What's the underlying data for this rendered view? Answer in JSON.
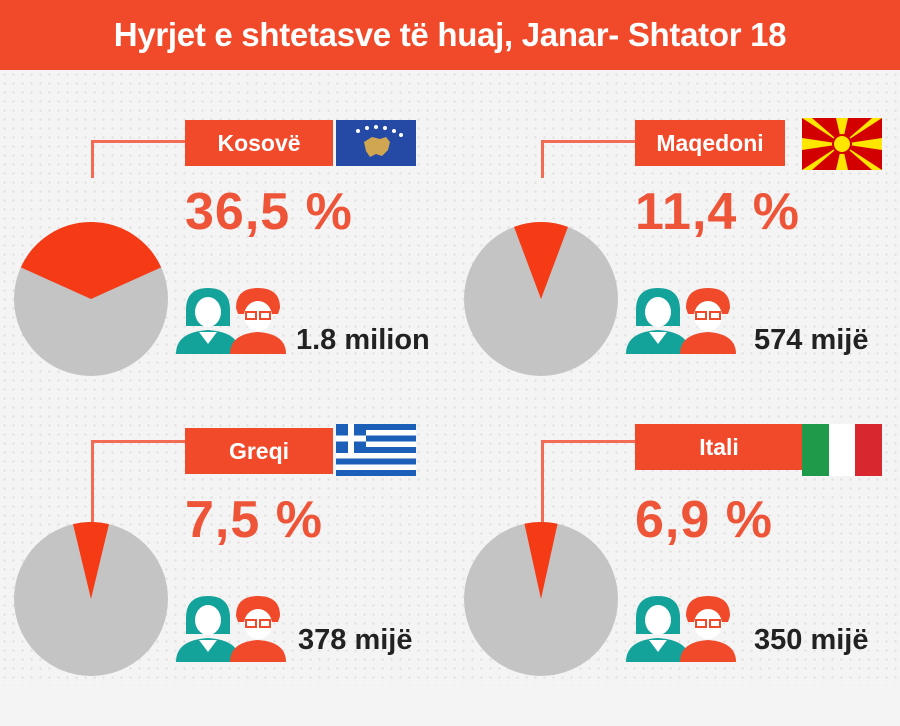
{
  "title": "Hyrjet e shtetasve të huaj, Janar- Shtator 18",
  "colors": {
    "accent": "#f04a2b",
    "percent_text": "#ee5538",
    "pie_base": "#c4c4c4",
    "pie_slice": "#f53a16",
    "person_teal": "#13a39b",
    "person_red": "#f04a2b"
  },
  "chart_data": [
    {
      "type": "pie",
      "country": "Kosovë",
      "flag": "kosovo-flag",
      "percent": 36.5,
      "percent_label": "36,5 %",
      "count_label": "1.8 milion"
    },
    {
      "type": "pie",
      "country": "Maqedoni",
      "flag": "macedonia-flag",
      "percent": 11.4,
      "percent_label": "11,4 %",
      "count_label": "574 mijë"
    },
    {
      "type": "pie",
      "country": "Greqi",
      "flag": "greece-flag",
      "percent": 7.5,
      "percent_label": "7,5 %",
      "count_label": "378 mijë"
    },
    {
      "type": "pie",
      "country": "Itali",
      "flag": "italy-flag",
      "percent": 6.9,
      "percent_label": "6,9 %",
      "count_label": "350 mijë"
    }
  ]
}
